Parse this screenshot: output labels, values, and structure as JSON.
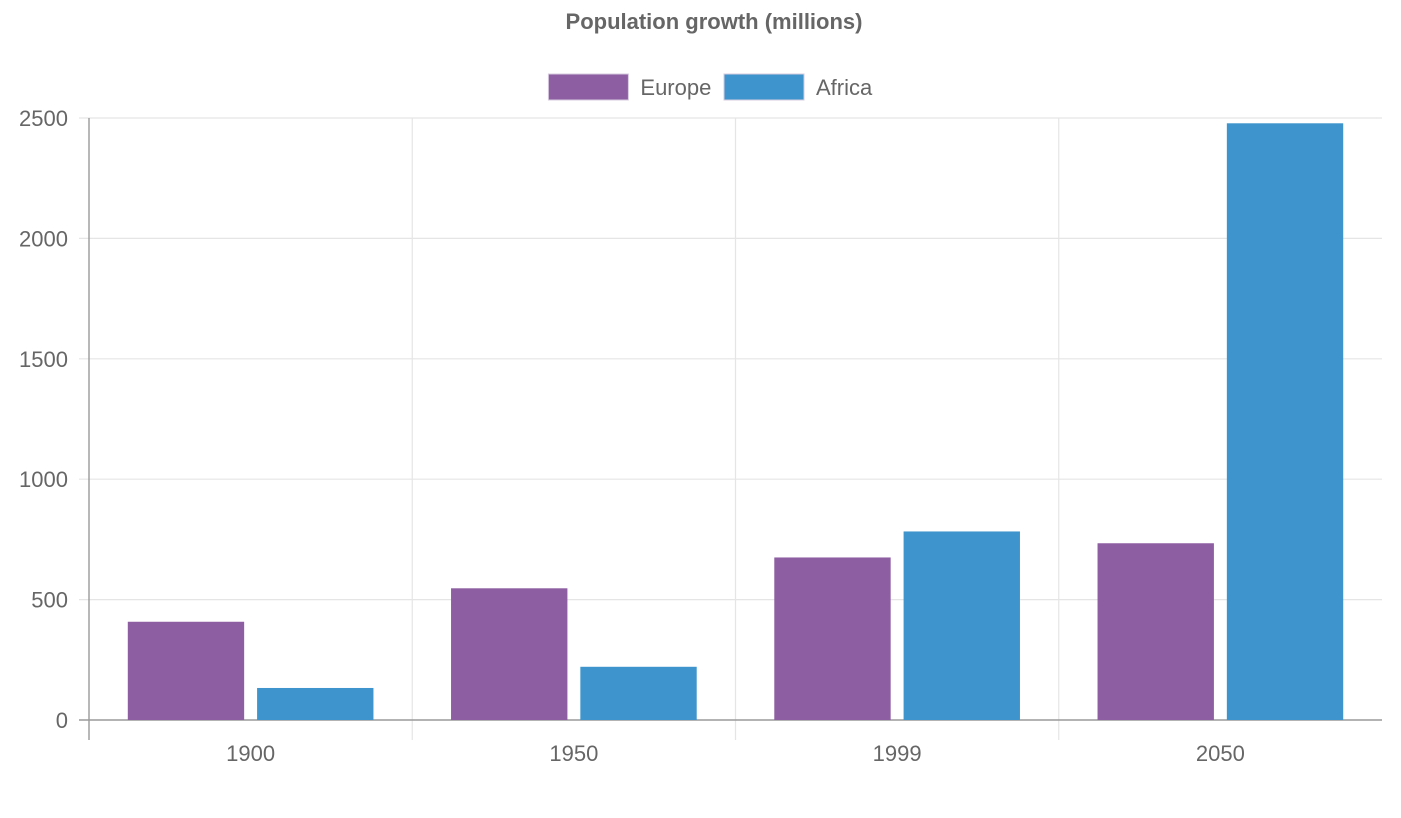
{
  "chart_data": {
    "type": "bar",
    "title": "Population growth (millions)",
    "xlabel": "",
    "ylabel": "",
    "categories": [
      "1900",
      "1950",
      "1999",
      "2050"
    ],
    "series": [
      {
        "name": "Europe",
        "color": "#8e5ea2",
        "values": [
          408,
          547,
          675,
          734
        ]
      },
      {
        "name": "Africa",
        "color": "#3e95cd",
        "values": [
          133,
          221,
          783,
          2478
        ]
      }
    ],
    "ylim": [
      0,
      2500
    ],
    "yticks": [
      "0",
      "500",
      "1000",
      "1500",
      "2000",
      "2500"
    ],
    "grid": true,
    "legend_position": "top"
  }
}
